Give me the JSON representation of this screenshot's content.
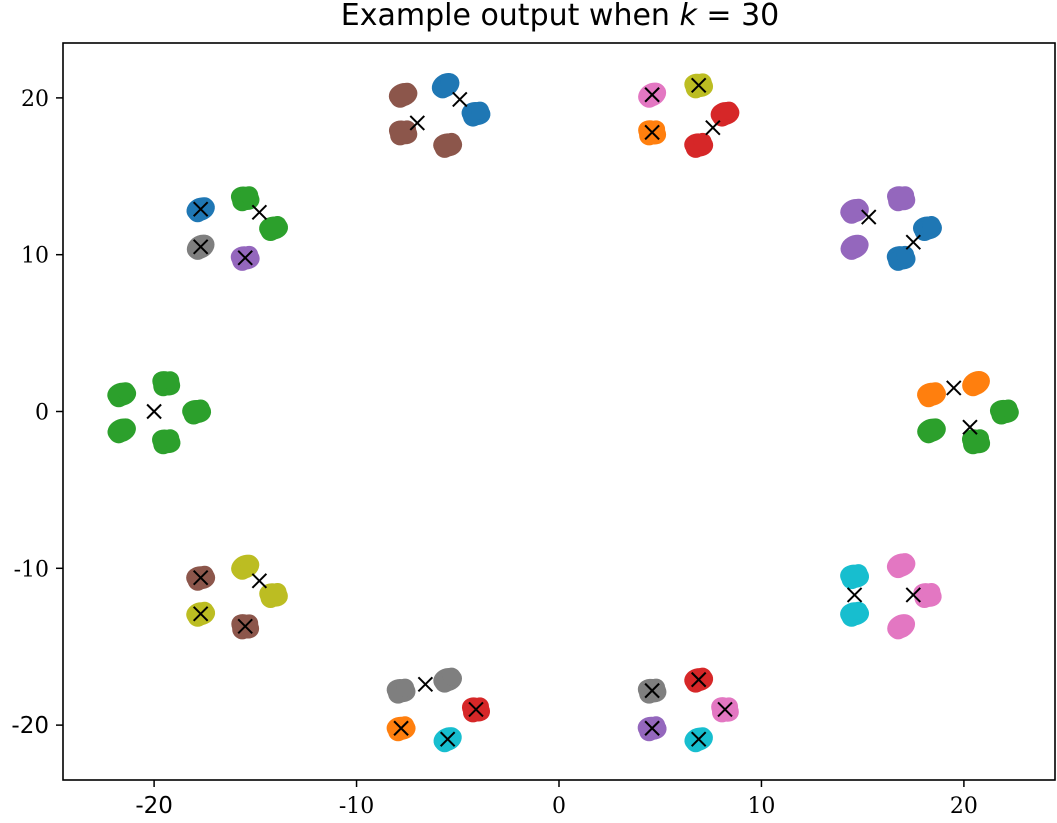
{
  "chart_data": {
    "type": "scatter",
    "title": "Example output when k = 30",
    "title_parts": {
      "prefix": "Example output when ",
      "var": "k",
      "suffix": " = 30"
    },
    "xlabel": "",
    "ylabel": "",
    "xlim": [
      -24.5,
      24.5
    ],
    "ylim": [
      -23.5,
      23.5
    ],
    "grid": false,
    "legend": "none",
    "x_ticks": [
      {
        "value": -20,
        "label": "-20"
      },
      {
        "value": -10,
        "label": "-10"
      },
      {
        "value": 0,
        "label": "0"
      },
      {
        "value": 10,
        "label": "10"
      },
      {
        "value": 20,
        "label": "20"
      }
    ],
    "y_ticks": [
      {
        "value": 20,
        "label": "20"
      },
      {
        "value": 10,
        "label": "10"
      },
      {
        "value": 0,
        "label": "0"
      },
      {
        "value": -10,
        "label": "-10"
      },
      {
        "value": -20,
        "label": "-20"
      }
    ],
    "blobs": [
      {
        "x": -5.6,
        "y": 20.8,
        "color": "#1f77b4"
      },
      {
        "x": -4.1,
        "y": 19.0,
        "color": "#1f77b4"
      },
      {
        "x": -7.7,
        "y": 20.2,
        "color": "#8c564b"
      },
      {
        "x": -7.7,
        "y": 17.8,
        "color": "#8c564b"
      },
      {
        "x": -5.5,
        "y": 17.0,
        "color": "#8c564b"
      },
      {
        "x": 4.6,
        "y": 20.2,
        "color": "#e377c2"
      },
      {
        "x": 6.9,
        "y": 20.8,
        "color": "#bcbd22"
      },
      {
        "x": 8.2,
        "y": 19.0,
        "color": "#d62728"
      },
      {
        "x": 4.6,
        "y": 17.8,
        "color": "#ff7f0e"
      },
      {
        "x": 6.9,
        "y": 17.0,
        "color": "#d62728"
      },
      {
        "x": -17.7,
        "y": 12.9,
        "color": "#1f77b4"
      },
      {
        "x": -15.5,
        "y": 13.6,
        "color": "#2ca02c"
      },
      {
        "x": -14.1,
        "y": 11.7,
        "color": "#2ca02c"
      },
      {
        "x": -17.7,
        "y": 10.5,
        "color": "#7f7f7f"
      },
      {
        "x": -15.5,
        "y": 9.8,
        "color": "#9467bd"
      },
      {
        "x": 14.6,
        "y": 12.8,
        "color": "#9467bd"
      },
      {
        "x": 16.9,
        "y": 13.6,
        "color": "#9467bd"
      },
      {
        "x": 18.2,
        "y": 11.7,
        "color": "#1f77b4"
      },
      {
        "x": 14.6,
        "y": 10.5,
        "color": "#9467bd"
      },
      {
        "x": 16.9,
        "y": 9.8,
        "color": "#1f77b4"
      },
      {
        "x": -21.6,
        "y": 1.1,
        "color": "#2ca02c"
      },
      {
        "x": -19.4,
        "y": 1.8,
        "color": "#2ca02c"
      },
      {
        "x": -17.9,
        "y": 0.0,
        "color": "#2ca02c"
      },
      {
        "x": -21.6,
        "y": -1.2,
        "color": "#2ca02c"
      },
      {
        "x": -19.4,
        "y": -1.9,
        "color": "#2ca02c"
      },
      {
        "x": 18.4,
        "y": 1.1,
        "color": "#ff7f0e"
      },
      {
        "x": 20.6,
        "y": 1.8,
        "color": "#ff7f0e"
      },
      {
        "x": 22.0,
        "y": 0.0,
        "color": "#2ca02c"
      },
      {
        "x": 18.4,
        "y": -1.2,
        "color": "#2ca02c"
      },
      {
        "x": 20.6,
        "y": -1.9,
        "color": "#2ca02c"
      },
      {
        "x": -17.7,
        "y": -10.6,
        "color": "#8c564b"
      },
      {
        "x": -15.5,
        "y": -9.9,
        "color": "#bcbd22"
      },
      {
        "x": -14.1,
        "y": -11.7,
        "color": "#bcbd22"
      },
      {
        "x": -17.7,
        "y": -12.9,
        "color": "#bcbd22"
      },
      {
        "x": -15.5,
        "y": -13.7,
        "color": "#8c564b"
      },
      {
        "x": 14.6,
        "y": -10.5,
        "color": "#17becf"
      },
      {
        "x": 16.9,
        "y": -9.8,
        "color": "#e377c2"
      },
      {
        "x": 18.2,
        "y": -11.7,
        "color": "#e377c2"
      },
      {
        "x": 14.6,
        "y": -12.9,
        "color": "#17becf"
      },
      {
        "x": 16.9,
        "y": -13.7,
        "color": "#e377c2"
      },
      {
        "x": -7.8,
        "y": -17.8,
        "color": "#7f7f7f"
      },
      {
        "x": -5.5,
        "y": -17.1,
        "color": "#7f7f7f"
      },
      {
        "x": -4.1,
        "y": -19.0,
        "color": "#d62728"
      },
      {
        "x": -7.8,
        "y": -20.2,
        "color": "#ff7f0e"
      },
      {
        "x": -5.5,
        "y": -20.9,
        "color": "#17becf"
      },
      {
        "x": 4.6,
        "y": -17.8,
        "color": "#7f7f7f"
      },
      {
        "x": 6.9,
        "y": -17.1,
        "color": "#d62728"
      },
      {
        "x": 8.2,
        "y": -19.0,
        "color": "#e377c2"
      },
      {
        "x": 4.6,
        "y": -20.2,
        "color": "#9467bd"
      },
      {
        "x": 6.9,
        "y": -20.9,
        "color": "#17becf"
      }
    ],
    "centroids": [
      {
        "x": -4.9,
        "y": 19.9
      },
      {
        "x": -7.0,
        "y": 18.4
      },
      {
        "x": 4.6,
        "y": 20.2
      },
      {
        "x": 6.9,
        "y": 20.8
      },
      {
        "x": 4.6,
        "y": 17.8
      },
      {
        "x": 7.6,
        "y": 18.1
      },
      {
        "x": -17.7,
        "y": 12.9
      },
      {
        "x": -14.8,
        "y": 12.7
      },
      {
        "x": -17.7,
        "y": 10.5
      },
      {
        "x": -15.5,
        "y": 9.8
      },
      {
        "x": 15.3,
        "y": 12.4
      },
      {
        "x": 17.5,
        "y": 10.8
      },
      {
        "x": -20.0,
        "y": 0.0
      },
      {
        "x": 19.5,
        "y": 1.5
      },
      {
        "x": 20.3,
        "y": -1.0
      },
      {
        "x": -17.7,
        "y": -10.6
      },
      {
        "x": -14.8,
        "y": -10.8
      },
      {
        "x": -17.7,
        "y": -12.9
      },
      {
        "x": -15.5,
        "y": -13.7
      },
      {
        "x": 14.6,
        "y": -11.7
      },
      {
        "x": 17.5,
        "y": -11.7
      },
      {
        "x": -6.6,
        "y": -17.4
      },
      {
        "x": -4.1,
        "y": -19.0
      },
      {
        "x": -7.8,
        "y": -20.2
      },
      {
        "x": -5.5,
        "y": -20.9
      },
      {
        "x": 4.6,
        "y": -17.8
      },
      {
        "x": 6.9,
        "y": -17.1
      },
      {
        "x": 8.2,
        "y": -19.0
      },
      {
        "x": 4.6,
        "y": -20.2
      },
      {
        "x": 6.9,
        "y": -20.9
      }
    ]
  }
}
